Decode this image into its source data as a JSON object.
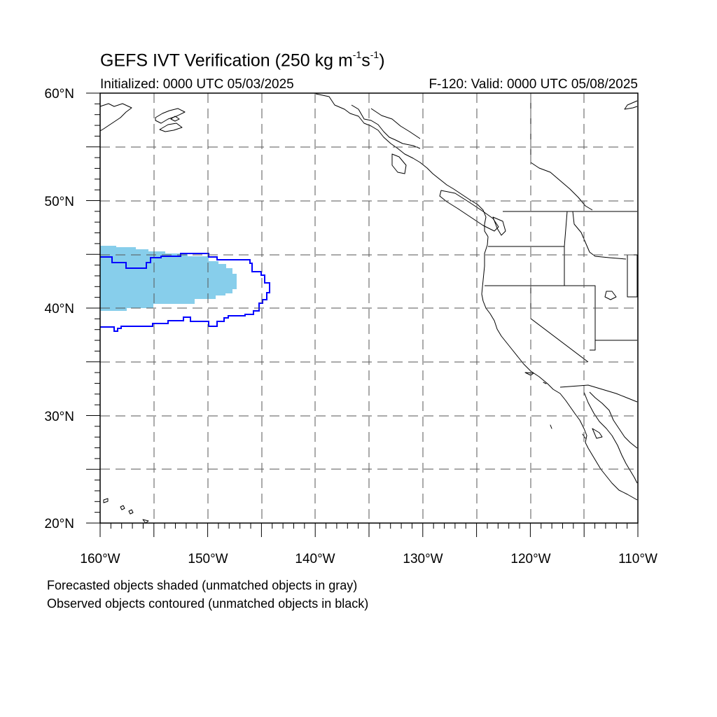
{
  "title": {
    "main": "GEFS IVT Verification (250 kg m",
    "exp1": "-1",
    "mid": "s",
    "exp2": "-1",
    "end": ")"
  },
  "initialized": "Initialized: 0000 UTC 05/03/2025",
  "valid": "F-120: Valid: 0000 UTC 05/08/2025",
  "lat_labels": [
    "60°N",
    "50°N",
    "40°N",
    "30°N",
    "20°N"
  ],
  "lon_labels": [
    "160°W",
    "150°W",
    "140°W",
    "130°W",
    "120°W",
    "110°W"
  ],
  "captions": [
    "Forecasted objects shaded (unmatched objects in gray)",
    "Observed objects contoured (unmatched objects in black)"
  ],
  "map": {
    "lon_range": [
      -160,
      -110
    ],
    "lat_range": [
      20,
      60
    ],
    "grid_lon": [
      -155,
      -150,
      -145,
      -140,
      -135,
      -130,
      -125,
      -120,
      -115
    ],
    "grid_lat": [
      25,
      30,
      35,
      40,
      45,
      50,
      55
    ],
    "forecast_fill_color": "#87ceeb",
    "observed_contour_color": "#0000ff",
    "coast_color": "#000000"
  }
}
